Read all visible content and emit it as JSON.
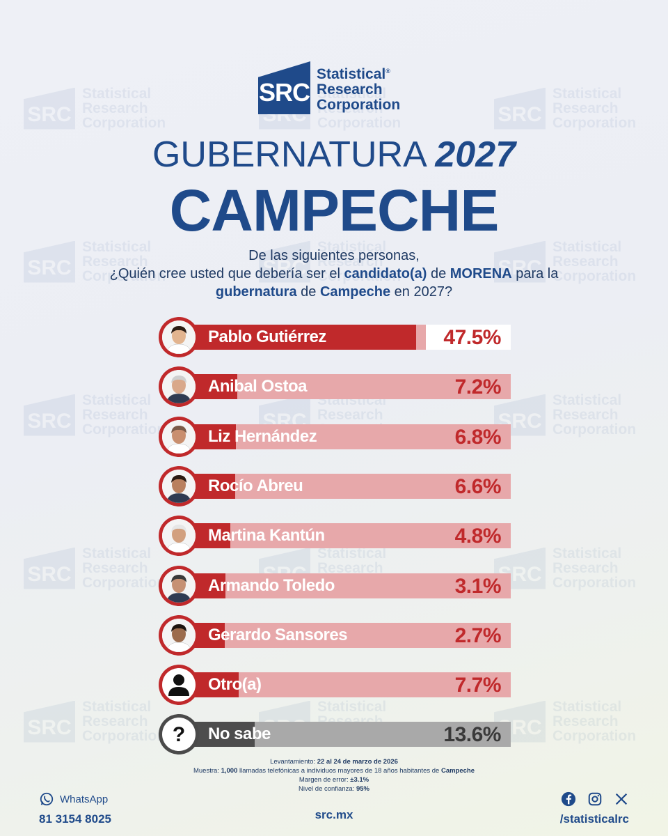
{
  "brand": {
    "logo_abbr": "SRC",
    "name_line1": "Statistical",
    "name_line2": "Research",
    "name_line3": "Corporation",
    "registered": "®"
  },
  "header": {
    "title_word": "GUBERNATURA",
    "title_year": "2027",
    "state": "CAMPECHE"
  },
  "question": {
    "line1": "De las siguientes personas,",
    "line2_a": "¿Quién cree usted que debería ser el ",
    "line2_b": "candidato(a)",
    "line2_c": " de ",
    "line2_d": "MORENA",
    "line2_e": " para la",
    "line3_a": "gubernatura",
    "line3_b": " de ",
    "line3_c": "Campeche",
    "line3_d": " en 2027?"
  },
  "colors": {
    "brand_blue": "#1f4a8a",
    "bar_red": "#c0292b",
    "bar_pink": "#e7a8aa",
    "bar_gray": "#4d4d4d",
    "bar_light_gray": "#a9a9a9"
  },
  "chart_data": {
    "type": "bar",
    "orientation": "horizontal",
    "title": "GUBERNATURA 2027 CAMPECHE",
    "unit": "%",
    "xlim": [
      0,
      50
    ],
    "categories": [
      "Pablo Gutiérrez",
      "Anibal Ostoa",
      "Liz Hernández",
      "Rocío Abreu",
      "Martina Kantún",
      "Armando Toledo",
      "Gerardo Sansores",
      "Otro(a)",
      "No sabe"
    ],
    "values": [
      47.5,
      7.2,
      6.8,
      6.6,
      4.8,
      3.1,
      2.7,
      7.7,
      13.6
    ],
    "labels": [
      "47.5%",
      "7.2%",
      "6.8%",
      "6.6%",
      "4.8%",
      "3.1%",
      "2.7%",
      "7.7%",
      "13.6%"
    ]
  },
  "methodology": {
    "l1_label": "Levantamiento: ",
    "l1_value": "22 al 24 de marzo de 2026",
    "l2_label_a": "Muestra: ",
    "l2_value_a": "1,000",
    "l2_mid": " llamadas telefónicas a individuos mayores de 18 años habitantes de ",
    "l2_value_b": "Campeche",
    "l3_label": "Margen de error: ",
    "l3_value": "±3.1%",
    "l4_label": "Nivel de confianza: ",
    "l4_value": "95%"
  },
  "footer": {
    "whatsapp_label": "WhatsApp",
    "whatsapp_number": "81 3154 8025",
    "website": "src.mx",
    "social_handle": "/statisticalrc"
  }
}
